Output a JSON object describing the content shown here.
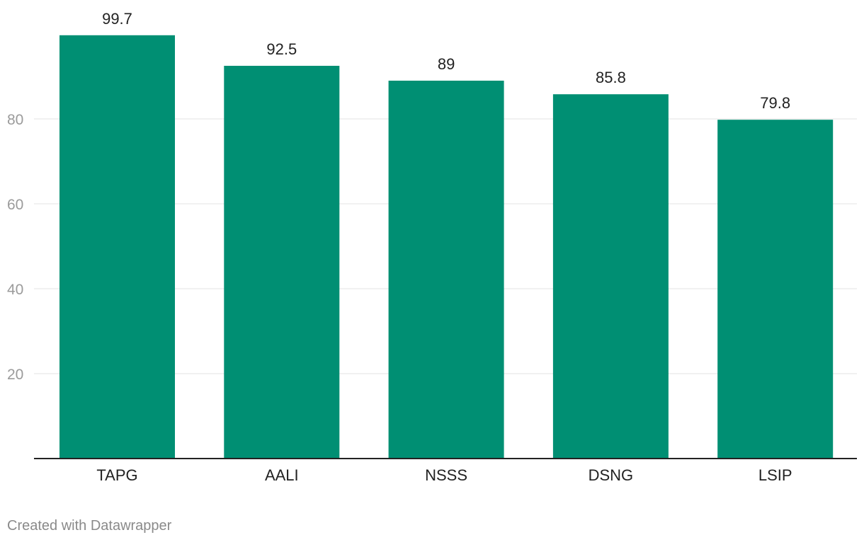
{
  "chart_data": {
    "type": "bar",
    "categories": [
      "TAPG",
      "AALI",
      "NSSS",
      "DSNG",
      "LSIP"
    ],
    "values": [
      99.7,
      92.5,
      89,
      85.8,
      79.8
    ],
    "value_labels": [
      "99.7",
      "92.5",
      "89",
      "85.8",
      "79.8"
    ],
    "yticks": [
      20,
      40,
      60,
      80
    ],
    "ylim": [
      0,
      100
    ],
    "title": "",
    "xlabel": "",
    "ylabel": "",
    "grid": true,
    "legend": "none",
    "bar_color": "#008f73"
  },
  "footer": {
    "credit": "Created with Datawrapper"
  },
  "colors": {
    "grid": "#e3e3e3",
    "tick_label": "#9b9b9b",
    "baseline": "#222222",
    "value_label": "#222222",
    "credit": "#8a8a8a"
  }
}
